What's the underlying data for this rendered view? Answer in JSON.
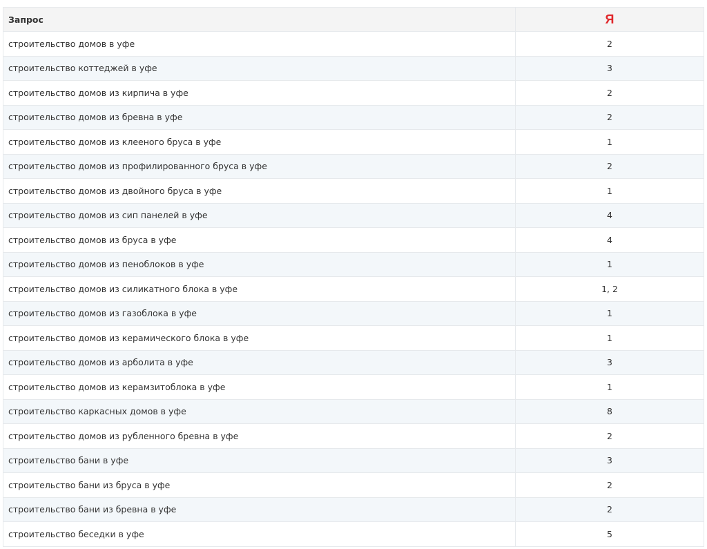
{
  "table": {
    "headers": [
      "Запрос",
      "Я"
    ],
    "header_colors": {
      "yandex": "#e0262a"
    },
    "rows": [
      [
        "строительство домов в уфе",
        "2"
      ],
      [
        "строительство коттеджей в уфе",
        "3"
      ],
      [
        "строительство домов из кирпича в уфе",
        "2"
      ],
      [
        "строительство домов из бревна в уфе",
        "2"
      ],
      [
        "строительство домов из клееного бруса в уфе",
        "1"
      ],
      [
        "строительство домов из профилированного бруса в уфе",
        "2"
      ],
      [
        "строительство домов из двойного бруса в уфе",
        "1"
      ],
      [
        "строительство домов из сип панелей в уфе",
        "4"
      ],
      [
        "строительство домов из бруса в уфе",
        "4"
      ],
      [
        "строительство домов из пеноблоков в уфе",
        "1"
      ],
      [
        "строительство домов из силикатного блока в уфе",
        "1, 2"
      ],
      [
        "строительство домов из газоблока в уфе",
        "1"
      ],
      [
        "строительство домов из керамического блока в уфе",
        "1"
      ],
      [
        "строительство домов из арболита в уфе",
        "3"
      ],
      [
        "строительство домов из керамзитоблока в уфе",
        "1"
      ],
      [
        "строительство каркасных домов в уфе",
        "8"
      ],
      [
        "строительство домов из рубленного бревна в уфе",
        "2"
      ],
      [
        "строительство бани в уфе",
        "3"
      ],
      [
        "строительство бани из бруса в уфе",
        "2"
      ],
      [
        "строительство бани из бревна в уфе",
        "2"
      ],
      [
        "строительство беседки в уфе",
        "5"
      ]
    ]
  }
}
